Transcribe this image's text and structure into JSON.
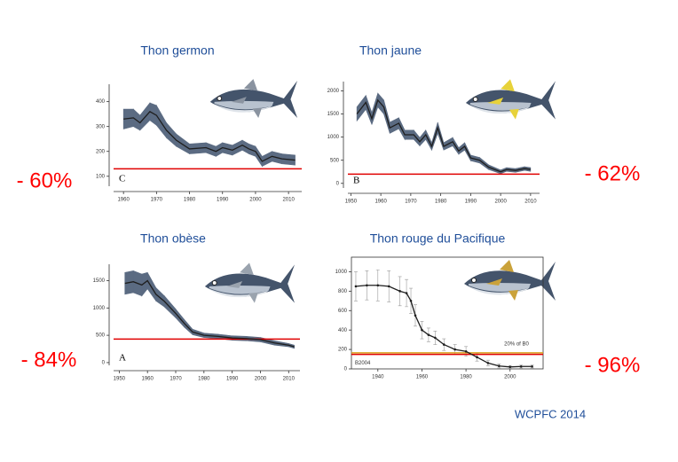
{
  "chart_data": [
    {
      "type": "line",
      "title": "Thon germon",
      "change": "- 60%",
      "panel_label": "C",
      "x": [
        1960,
        1963,
        1965,
        1968,
        1970,
        1973,
        1976,
        1980,
        1985,
        1988,
        1990,
        1993,
        1996,
        1998,
        2000,
        2002,
        2005,
        2008,
        2012
      ],
      "values": [
        330,
        335,
        315,
        360,
        345,
        285,
        245,
        210,
        215,
        200,
        215,
        205,
        225,
        210,
        200,
        160,
        180,
        170,
        165
      ],
      "lower": [
        290,
        300,
        285,
        325,
        305,
        255,
        220,
        190,
        195,
        180,
        195,
        185,
        205,
        190,
        180,
        140,
        160,
        150,
        145
      ],
      "upper": [
        370,
        370,
        345,
        395,
        385,
        315,
        270,
        230,
        235,
        220,
        235,
        225,
        245,
        230,
        220,
        180,
        200,
        190,
        185
      ],
      "uncertainty_style": "band",
      "color": "#1e1e1e",
      "band_color": "#5b6b82",
      "reference_lines": [
        {
          "value": 130,
          "color": "#e00000"
        }
      ],
      "xlim": [
        1957,
        2014
      ],
      "xticks": [
        1960,
        1970,
        1980,
        1990,
        2000,
        2010
      ],
      "ylim": [
        60,
        470
      ],
      "yticks": [
        100,
        200,
        300,
        400
      ],
      "frame": false
    },
    {
      "type": "line",
      "title": "Thon jaune",
      "change": "- 62%",
      "panel_label": "B",
      "x": [
        1952,
        1955,
        1957,
        1959,
        1961,
        1963,
        1966,
        1968,
        1971,
        1973,
        1975,
        1977,
        1979,
        1981,
        1984,
        1986,
        1988,
        1990,
        1993,
        1996,
        2000,
        2002,
        2005,
        2008,
        2010
      ],
      "values": [
        1500,
        1750,
        1400,
        1800,
        1650,
        1200,
        1300,
        1050,
        1050,
        900,
        1050,
        800,
        1200,
        800,
        900,
        700,
        800,
        550,
        500,
        350,
        250,
        300,
        280,
        320,
        300
      ],
      "lower": [
        1350,
        1600,
        1270,
        1650,
        1500,
        1080,
        1180,
        950,
        950,
        810,
        950,
        720,
        1080,
        720,
        810,
        630,
        720,
        490,
        440,
        300,
        210,
        260,
        240,
        280,
        260
      ],
      "upper": [
        1650,
        1900,
        1530,
        1950,
        1800,
        1320,
        1420,
        1150,
        1150,
        990,
        1150,
        880,
        1320,
        880,
        990,
        770,
        880,
        610,
        560,
        400,
        290,
        340,
        320,
        360,
        340
      ],
      "uncertainty_style": "band",
      "color": "#1e1e1e",
      "band_color": "#5b6b82",
      "reference_lines": [
        {
          "value": 200,
          "color": "#e00000"
        }
      ],
      "xlim": [
        1949,
        2013
      ],
      "xticks": [
        1950,
        1960,
        1970,
        1980,
        1990,
        2000,
        2010
      ],
      "ylim": [
        -100,
        2200
      ],
      "yticks": [
        0,
        500,
        1000,
        1500,
        2000
      ],
      "frame": false
    },
    {
      "type": "line",
      "title": "Thon obèse",
      "change": "- 84%",
      "panel_label": "A",
      "x": [
        1952,
        1955,
        1958,
        1960,
        1963,
        1966,
        1970,
        1973,
        1976,
        1980,
        1985,
        1990,
        1995,
        2000,
        2005,
        2010,
        2012
      ],
      "values": [
        1450,
        1480,
        1420,
        1500,
        1250,
        1120,
        900,
        720,
        560,
        500,
        480,
        450,
        440,
        420,
        360,
        320,
        290
      ],
      "lower": [
        1250,
        1280,
        1220,
        1350,
        1130,
        1020,
        820,
        650,
        510,
        460,
        440,
        410,
        400,
        380,
        320,
        290,
        260
      ],
      "upper": [
        1650,
        1680,
        1620,
        1650,
        1370,
        1220,
        980,
        790,
        610,
        540,
        520,
        490,
        480,
        460,
        400,
        350,
        320
      ],
      "uncertainty_style": "band",
      "color": "#1e1e1e",
      "band_color": "#5b6b82",
      "reference_lines": [
        {
          "value": 430,
          "color": "#e00000"
        }
      ],
      "xlim": [
        1948,
        2014
      ],
      "xticks": [
        1950,
        1960,
        1970,
        1980,
        1990,
        2000,
        2010
      ],
      "ylim": [
        -50,
        1800
      ],
      "yticks": [
        0,
        500,
        1000,
        1500
      ],
      "frame": false
    },
    {
      "type": "line",
      "title": "Thon rouge du Pacifique",
      "change": "- 96%",
      "x": [
        1930,
        1935,
        1940,
        1945,
        1950,
        1953,
        1955,
        1957,
        1960,
        1963,
        1966,
        1970,
        1975,
        1980,
        1985,
        1990,
        1995,
        2000,
        2005,
        2010
      ],
      "values": [
        850,
        860,
        860,
        850,
        800,
        780,
        700,
        550,
        400,
        350,
        320,
        250,
        200,
        180,
        120,
        60,
        30,
        20,
        25,
        25
      ],
      "lower": [
        700,
        710,
        700,
        690,
        650,
        640,
        570,
        440,
        310,
        280,
        250,
        190,
        150,
        130,
        80,
        30,
        10,
        5,
        10,
        10
      ],
      "upper": [
        1000,
        1010,
        1020,
        1010,
        950,
        920,
        830,
        660,
        490,
        420,
        390,
        310,
        250,
        230,
        160,
        90,
        50,
        35,
        40,
        40
      ],
      "uncertainty_style": "errorbars",
      "color": "#1e1e1e",
      "band_color": "#9a9a9a",
      "reference_lines": [
        {
          "value": 165,
          "color": "#d9a520",
          "label": "20% of B0"
        },
        {
          "value": 150,
          "color": "#e00000",
          "label": "B2004"
        }
      ],
      "xlim": [
        1928,
        2015
      ],
      "xticks": [
        1940,
        1960,
        1980,
        2000
      ],
      "ylim": [
        0,
        1150
      ],
      "yticks": [
        0,
        200,
        400,
        600,
        800,
        1000
      ],
      "frame": true
    }
  ],
  "source": "WCPFC 2014"
}
